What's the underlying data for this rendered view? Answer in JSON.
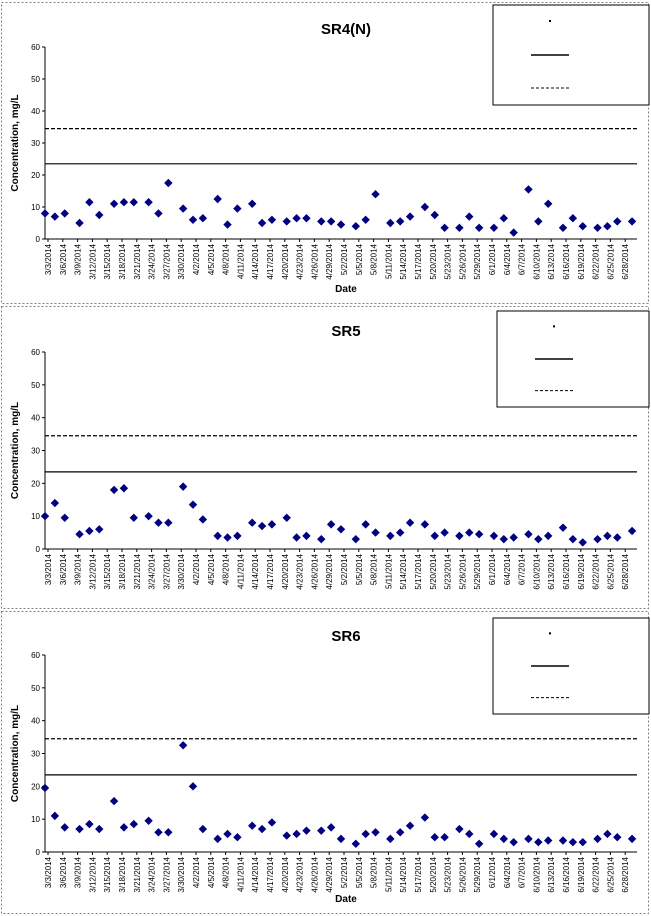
{
  "colors": {
    "marker": "#000080",
    "line": "#000000",
    "panel_border": "#808080"
  },
  "x_tick_labels": [
    "3/3/2014",
    "3/6/2014",
    "3/9/2014",
    "3/12/2014",
    "3/15/2014",
    "3/18/2014",
    "3/21/2014",
    "3/24/2014",
    "3/27/2014",
    "3/30/2014",
    "4/2/2014",
    "4/5/2014",
    "4/8/2014",
    "4/11/2014",
    "4/14/2014",
    "4/17/2014",
    "4/20/2014",
    "4/23/2014",
    "4/26/2014",
    "4/29/2014",
    "5/2/2014",
    "5/5/2014",
    "5/8/2014",
    "5/11/2014",
    "5/14/2014",
    "5/17/2014",
    "5/20/2014",
    "5/23/2014",
    "5/26/2014",
    "5/29/2014",
    "6/1/2014",
    "6/4/2014",
    "6/7/2014",
    "6/10/2014",
    "6/13/2014",
    "6/16/2014",
    "6/19/2014",
    "6/22/2014",
    "6/25/2014",
    "6/28/2014"
  ],
  "chart_data": [
    {
      "type": "scatter",
      "title": "SR4(N)",
      "xlabel": "Date",
      "ylabel": "Concentration, mg/L",
      "ylim": [
        0,
        60
      ],
      "yticks": [
        0,
        10,
        20,
        30,
        40,
        50,
        60
      ],
      "grid": false,
      "legend": {
        "placement": "top-right",
        "entries": [
          "",
          "",
          ""
        ]
      },
      "x": [
        "2014-03-03",
        "2014-03-05",
        "2014-03-07",
        "2014-03-10",
        "2014-03-12",
        "2014-03-14",
        "2014-03-17",
        "2014-03-19",
        "2014-03-21",
        "2014-03-24",
        "2014-03-26",
        "2014-03-28",
        "2014-03-31",
        "2014-04-02",
        "2014-04-04",
        "2014-04-07",
        "2014-04-09",
        "2014-04-11",
        "2014-04-14",
        "2014-04-16",
        "2014-04-18",
        "2014-04-21",
        "2014-04-23",
        "2014-04-25",
        "2014-04-28",
        "2014-04-30",
        "2014-05-02",
        "2014-05-05",
        "2014-05-07",
        "2014-05-09",
        "2014-05-12",
        "2014-05-14",
        "2014-05-16",
        "2014-05-19",
        "2014-05-21",
        "2014-05-23",
        "2014-05-26",
        "2014-05-28",
        "2014-05-30",
        "2014-06-02",
        "2014-06-04",
        "2014-06-06",
        "2014-06-09",
        "2014-06-11",
        "2014-06-13",
        "2014-06-16",
        "2014-06-18",
        "2014-06-20",
        "2014-06-23",
        "2014-06-25",
        "2014-06-27",
        "2014-06-30"
      ],
      "series": [
        {
          "values": [
            8,
            7,
            8,
            5,
            11.5,
            7.5,
            11,
            11.5,
            11.5,
            11.5,
            8,
            17.5,
            9.5,
            6,
            6.5,
            12.5,
            4.5,
            9.5,
            11,
            5,
            6,
            5.5,
            6.5,
            6.5,
            5.5,
            5.5,
            4.5,
            4,
            6,
            14,
            5,
            5.5,
            7,
            10,
            7.5,
            3.5,
            3.5,
            7,
            3.5,
            3.5,
            6.5,
            2,
            15.5,
            5.5,
            11,
            3.5,
            6.5,
            4,
            3.5,
            4,
            5.5,
            5.5
          ]
        }
      ],
      "reference_lines": [
        {
          "value": 23.5,
          "style": "solid"
        },
        {
          "value": 34.5,
          "style": "dashed"
        }
      ]
    },
    {
      "type": "scatter",
      "title": "SR5",
      "xlabel": "",
      "ylabel": "Concentration, mg/L",
      "ylim": [
        0,
        60
      ],
      "yticks": [
        0,
        10,
        20,
        30,
        40,
        50,
        60
      ],
      "grid": false,
      "legend": {
        "placement": "top-right",
        "entries": [
          "",
          "",
          ""
        ]
      },
      "x": [
        "2014-03-03",
        "2014-03-05",
        "2014-03-07",
        "2014-03-10",
        "2014-03-12",
        "2014-03-14",
        "2014-03-17",
        "2014-03-19",
        "2014-03-21",
        "2014-03-24",
        "2014-03-26",
        "2014-03-28",
        "2014-03-31",
        "2014-04-02",
        "2014-04-04",
        "2014-04-07",
        "2014-04-09",
        "2014-04-11",
        "2014-04-14",
        "2014-04-16",
        "2014-04-18",
        "2014-04-21",
        "2014-04-23",
        "2014-04-25",
        "2014-04-28",
        "2014-04-30",
        "2014-05-02",
        "2014-05-05",
        "2014-05-07",
        "2014-05-09",
        "2014-05-12",
        "2014-05-14",
        "2014-05-16",
        "2014-05-19",
        "2014-05-21",
        "2014-05-23",
        "2014-05-26",
        "2014-05-28",
        "2014-05-30",
        "2014-06-02",
        "2014-06-04",
        "2014-06-06",
        "2014-06-09",
        "2014-06-11",
        "2014-06-13",
        "2014-06-16",
        "2014-06-18",
        "2014-06-20",
        "2014-06-23",
        "2014-06-25",
        "2014-06-27",
        "2014-06-30"
      ],
      "series": [
        {
          "values": [
            10,
            14,
            9.5,
            4.5,
            5.5,
            6,
            18,
            18.5,
            9.5,
            10,
            8,
            8,
            19,
            13.5,
            9,
            4,
            3.5,
            4,
            8,
            7,
            7.5,
            9.5,
            3.5,
            4,
            3,
            7.5,
            6,
            3,
            7.5,
            5,
            4,
            5,
            8,
            7.5,
            4,
            5,
            4,
            5,
            4.5,
            4,
            3,
            3.5,
            4.5,
            3,
            4,
            6.5,
            3,
            2,
            3,
            4,
            3.5,
            5.5
          ]
        }
      ],
      "reference_lines": [
        {
          "value": 23.5,
          "style": "solid"
        },
        {
          "value": 34.5,
          "style": "dashed"
        }
      ]
    },
    {
      "type": "scatter",
      "title": "SR6",
      "xlabel": "Date",
      "ylabel": "Concentration, mg/L",
      "ylim": [
        0,
        60
      ],
      "yticks": [
        0,
        10,
        20,
        30,
        40,
        50,
        60
      ],
      "grid": false,
      "legend": {
        "placement": "top-right",
        "entries": [
          "",
          "",
          ""
        ]
      },
      "x": [
        "2014-03-03",
        "2014-03-05",
        "2014-03-07",
        "2014-03-10",
        "2014-03-12",
        "2014-03-14",
        "2014-03-17",
        "2014-03-19",
        "2014-03-21",
        "2014-03-24",
        "2014-03-26",
        "2014-03-28",
        "2014-03-31",
        "2014-04-02",
        "2014-04-04",
        "2014-04-07",
        "2014-04-09",
        "2014-04-11",
        "2014-04-14",
        "2014-04-16",
        "2014-04-18",
        "2014-04-21",
        "2014-04-23",
        "2014-04-25",
        "2014-04-28",
        "2014-04-30",
        "2014-05-02",
        "2014-05-05",
        "2014-05-07",
        "2014-05-09",
        "2014-05-12",
        "2014-05-14",
        "2014-05-16",
        "2014-05-19",
        "2014-05-21",
        "2014-05-23",
        "2014-05-26",
        "2014-05-28",
        "2014-05-30",
        "2014-06-02",
        "2014-06-04",
        "2014-06-06",
        "2014-06-09",
        "2014-06-11",
        "2014-06-13",
        "2014-06-16",
        "2014-06-18",
        "2014-06-20",
        "2014-06-23",
        "2014-06-25",
        "2014-06-27",
        "2014-06-30"
      ],
      "series": [
        {
          "values": [
            19.5,
            11,
            7.5,
            7,
            8.5,
            7,
            15.5,
            7.5,
            8.5,
            9.5,
            6,
            6,
            32.5,
            20,
            7,
            4,
            5.5,
            4.5,
            8,
            7,
            9,
            5,
            5.5,
            6.5,
            6.5,
            7.5,
            4,
            2.5,
            5.5,
            6,
            4,
            6,
            8,
            10.5,
            4.5,
            4.5,
            7,
            5.5,
            2.5,
            5.5,
            4,
            3,
            4,
            3,
            3.5,
            3.5,
            3,
            3,
            4,
            5.5,
            4.5,
            4
          ]
        }
      ],
      "reference_lines": [
        {
          "value": 23.5,
          "style": "solid"
        },
        {
          "value": 34.5,
          "style": "dashed"
        }
      ]
    }
  ]
}
